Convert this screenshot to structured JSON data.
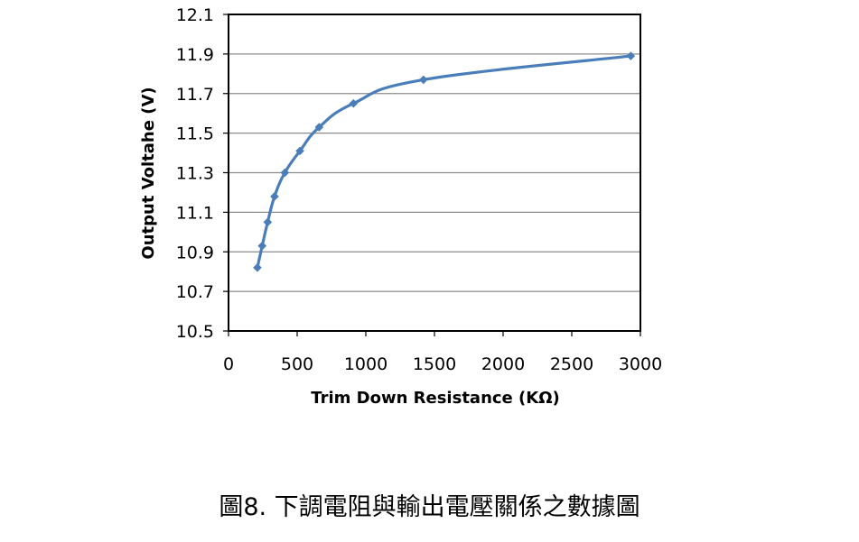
{
  "caption": "圖8. 下調電阻與輸出電壓關係之數據圖",
  "colors": {
    "series": "#4A7EBB",
    "grid": "#8c8c8c",
    "frame": "#000000"
  },
  "chart_data": {
    "type": "scatter",
    "title": "",
    "xlabel": "Trim Down Resistance (KΩ)",
    "ylabel": "Output Voltahe (V)",
    "xlim": [
      0,
      3000
    ],
    "ylim": [
      10.5,
      12.1
    ],
    "xticks": [
      0,
      500,
      1000,
      1500,
      2000,
      2500,
      3000
    ],
    "yticks": [
      "10.5",
      "10.7",
      "10.9",
      "11.1",
      "11.3",
      "11.5",
      "11.7",
      "11.9",
      "12.1"
    ],
    "grid": "horizontal",
    "legend": "none",
    "series": [
      {
        "smooth": true,
        "marker": "diamond",
        "x": [
          210,
          245,
          285,
          335,
          410,
          520,
          660,
          910,
          1420,
          2930
        ],
        "y": [
          10.82,
          10.93,
          11.05,
          11.18,
          11.3,
          11.41,
          11.53,
          11.65,
          11.77,
          11.89
        ]
      }
    ]
  }
}
